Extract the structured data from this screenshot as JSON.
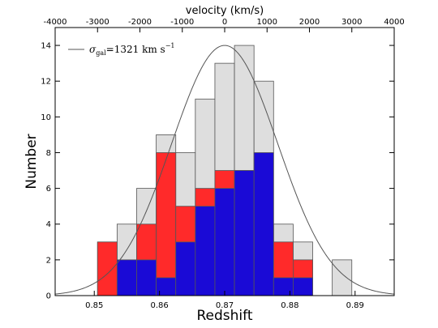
{
  "chart_data": {
    "type": "bar",
    "xlabel": "Redshift",
    "ylabel": "Number",
    "top_xlabel": "velocity (km/s)",
    "xlim": [
      0.844,
      0.896
    ],
    "ylim": [
      0,
      15
    ],
    "top_xlim": [
      -4000,
      4000
    ],
    "x_ticks": [
      0.85,
      0.86,
      0.87,
      0.88,
      0.89
    ],
    "x_tick_labels": [
      "0.85",
      "0.86",
      "0.87",
      "0.88",
      "0.89"
    ],
    "y_ticks": [
      0,
      2,
      4,
      6,
      8,
      10,
      12,
      14
    ],
    "y_tick_labels": [
      "0",
      "2",
      "4",
      "6",
      "8",
      "10",
      "12",
      "14"
    ],
    "top_ticks": [
      -4000,
      -3000,
      -2000,
      -1000,
      0,
      1000,
      2000,
      3000,
      4000
    ],
    "top_tick_labels": [
      "-4000",
      "-3000",
      "-2000",
      "-1000",
      "0",
      "1000",
      "2000",
      "3000",
      "4000"
    ],
    "bin_width": 0.003,
    "series": [
      {
        "color": "#dedede",
        "bins": [
          {
            "x0": 0.8505,
            "count": 3
          },
          {
            "x0": 0.8535,
            "count": 4
          },
          {
            "x0": 0.8565,
            "count": 6
          },
          {
            "x0": 0.8595,
            "count": 9
          },
          {
            "x0": 0.8625,
            "count": 8
          },
          {
            "x0": 0.8655,
            "count": 11
          },
          {
            "x0": 0.8685,
            "count": 13
          },
          {
            "x0": 0.8715,
            "count": 14
          },
          {
            "x0": 0.8745,
            "count": 12
          },
          {
            "x0": 0.8775,
            "count": 4
          },
          {
            "x0": 0.8805,
            "count": 3
          },
          {
            "x0": 0.8865,
            "count": 2
          }
        ]
      },
      {
        "color": "#ff2a2a",
        "bins": [
          {
            "x0": 0.8505,
            "count": 3
          },
          {
            "x0": 0.8535,
            "count": 2
          },
          {
            "x0": 0.8565,
            "count": 4
          },
          {
            "x0": 0.8595,
            "count": 8
          },
          {
            "x0": 0.8625,
            "count": 5
          },
          {
            "x0": 0.8655,
            "count": 6
          },
          {
            "x0": 0.8685,
            "count": 7
          },
          {
            "x0": 0.8715,
            "count": 7
          },
          {
            "x0": 0.8745,
            "count": 4
          },
          {
            "x0": 0.8775,
            "count": 3
          },
          {
            "x0": 0.8805,
            "count": 2
          }
        ]
      },
      {
        "color": "#1a0ad6",
        "bins": [
          {
            "x0": 0.8535,
            "count": 2
          },
          {
            "x0": 0.8565,
            "count": 2
          },
          {
            "x0": 0.8595,
            "count": 1
          },
          {
            "x0": 0.8625,
            "count": 3
          },
          {
            "x0": 0.8655,
            "count": 5
          },
          {
            "x0": 0.8685,
            "count": 6
          },
          {
            "x0": 0.8715,
            "count": 7
          },
          {
            "x0": 0.8745,
            "count": 8
          },
          {
            "x0": 0.8775,
            "count": 1
          },
          {
            "x0": 0.8805,
            "count": 1
          }
        ]
      }
    ],
    "gaussian": {
      "mean": 0.87,
      "sigma_z": 0.00815,
      "peak": 14,
      "color": "#555555"
    },
    "legend": {
      "placement": "top-left",
      "symbol": "σ",
      "subscript": "gal",
      "text": "=1321 km s",
      "superscript": "−1"
    },
    "colors": {
      "edge": "#555555",
      "axis": "#000000"
    }
  }
}
